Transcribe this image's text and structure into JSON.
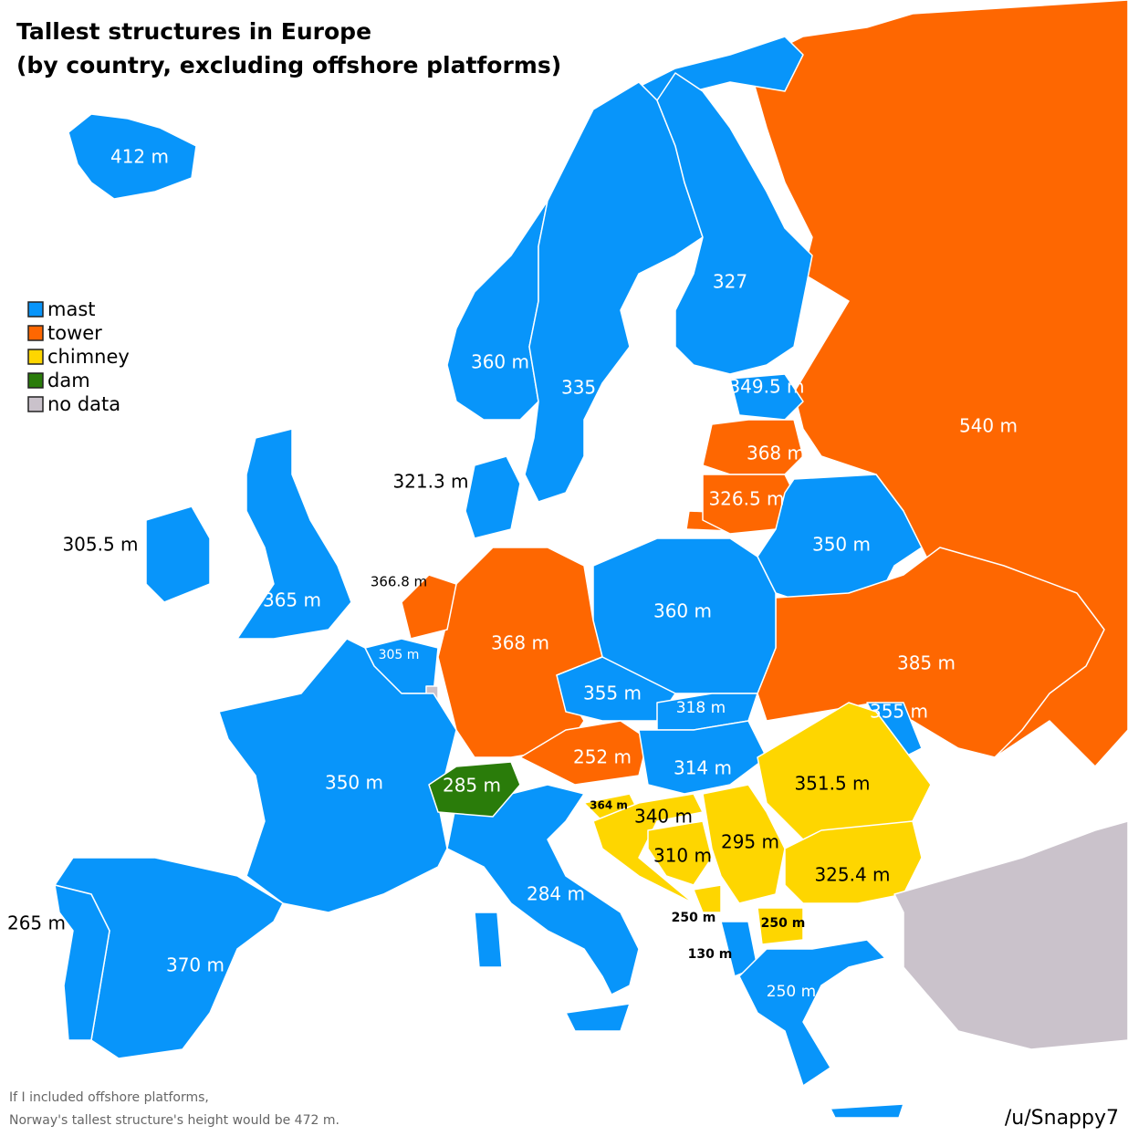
{
  "title": "Tallest structures in Europe",
  "subtitle": "(by country, excluding offshore platforms)",
  "legend": [
    {
      "label": "mast",
      "color": "#0895fa"
    },
    {
      "label": "tower",
      "color": "#fe6701"
    },
    {
      "label": "chimney",
      "color": "#fed600"
    },
    {
      "label": "dam",
      "color": "#2a7c0a"
    },
    {
      "label": "no data",
      "color": "#cac2cb"
    }
  ],
  "labels": [
    "412 m",
    "327",
    "360 m",
    "335 m",
    "349.5 m",
    "540 m",
    "368 m",
    "326.5 m",
    "321.3 m",
    "305.5 m",
    "350 m",
    "366.8 m",
    "365 m",
    "360 m",
    "368 m",
    "305 m",
    "385 m",
    "355 m",
    "318 m",
    "355 m",
    "252 m",
    "314 m",
    "350 m",
    "285 m",
    "351.5 m",
    "364 m",
    "340 m",
    "295 m",
    "310 m",
    "325.4 m",
    "284 m",
    "265 m",
    "250 m",
    "250 m",
    "130 m",
    "370 m",
    "250 m"
  ],
  "footnote": [
    "If I included offshore platforms,",
    "Norway's tallest structure's height would be 472 m."
  ],
  "credit": "/u/Snappy7"
}
